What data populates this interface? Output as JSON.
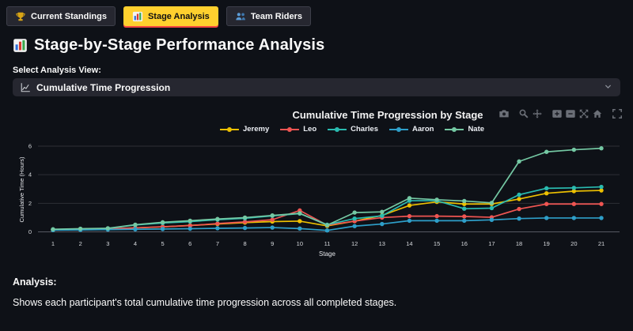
{
  "tabs": [
    {
      "label": "Current Standings",
      "icon": "trophy-icon",
      "active": false
    },
    {
      "label": "Stage Analysis",
      "icon": "bar-chart-icon",
      "active": true
    },
    {
      "label": "Team Riders",
      "icon": "people-icon",
      "active": false
    }
  ],
  "page": {
    "title": "Stage-by-Stage Performance Analysis",
    "title_icon": "bar-chart-icon",
    "select_label": "Select Analysis View:",
    "select_value": "Cumulative Time Progression",
    "select_icon": "line-chart-icon"
  },
  "modebar_icons": [
    "camera-icon",
    "zoom-icon",
    "pan-icon",
    "zoom-in-icon",
    "zoom-out-icon",
    "autoscale-icon",
    "home-icon",
    "fullscreen-icon"
  ],
  "chart_data": {
    "type": "line",
    "title": "Cumulative Time Progression by Stage",
    "xlabel": "Stage",
    "ylabel": "Cumulative Time (Hours)",
    "x": [
      1,
      2,
      3,
      4,
      5,
      6,
      7,
      8,
      9,
      10,
      11,
      12,
      13,
      14,
      15,
      16,
      17,
      18,
      19,
      20,
      21
    ],
    "yticks": [
      0,
      2,
      4,
      6
    ],
    "ylim": [
      0,
      6.6
    ],
    "grid": true,
    "legend_position": "top-center",
    "series": [
      {
        "name": "Jeremy",
        "color": "#edc001",
        "values": [
          0.15,
          0.18,
          0.2,
          0.28,
          0.35,
          0.45,
          0.55,
          0.65,
          0.72,
          0.75,
          0.42,
          0.75,
          1.15,
          1.85,
          2.1,
          1.95,
          1.95,
          2.3,
          2.7,
          2.85,
          2.9
        ]
      },
      {
        "name": "Leo",
        "color": "#ef5552",
        "values": [
          0.15,
          0.18,
          0.22,
          0.28,
          0.36,
          0.44,
          0.58,
          0.7,
          0.85,
          1.5,
          0.47,
          0.75,
          1.0,
          1.1,
          1.1,
          1.08,
          1.02,
          1.6,
          1.95,
          1.95,
          1.95
        ]
      },
      {
        "name": "Charles",
        "color": "#2abbb0",
        "values": [
          0.17,
          0.2,
          0.24,
          0.48,
          0.62,
          0.72,
          0.85,
          0.95,
          1.12,
          1.28,
          0.5,
          0.93,
          1.12,
          2.18,
          2.18,
          1.62,
          1.66,
          2.6,
          3.05,
          3.08,
          3.15
        ]
      },
      {
        "name": "Aaron",
        "color": "#2e9fc9",
        "values": [
          0.12,
          0.14,
          0.16,
          0.18,
          0.2,
          0.22,
          0.25,
          0.27,
          0.3,
          0.23,
          0.1,
          0.4,
          0.55,
          0.78,
          0.78,
          0.78,
          0.84,
          0.93,
          0.97,
          0.97,
          0.97
        ]
      },
      {
        "name": "Nate",
        "color": "#74c8a3",
        "values": [
          0.18,
          0.22,
          0.25,
          0.5,
          0.67,
          0.78,
          0.9,
          1.0,
          1.15,
          1.3,
          0.47,
          1.35,
          1.4,
          2.36,
          2.25,
          2.16,
          2.03,
          4.93,
          5.6,
          5.75,
          5.85
        ]
      }
    ]
  },
  "analysis": {
    "heading": "Analysis:",
    "body": "Shows each participant's total cumulative time progression across all completed stages."
  },
  "colors": {
    "background": "#0e1117",
    "panel": "#262730",
    "active_tab": "#ffd02e",
    "active_tab_underline": "#fa4642",
    "grid": "#2d2f36",
    "zero_line": "#565963",
    "text": "#fafafa"
  }
}
